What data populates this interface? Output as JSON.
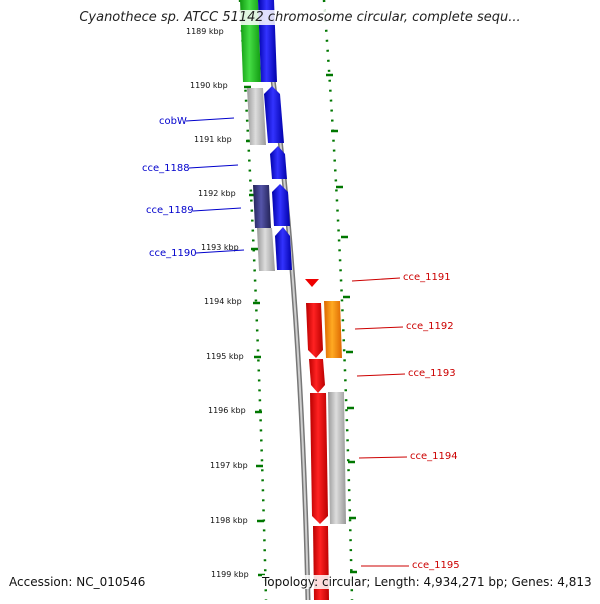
{
  "title": "Cyanothece sp. ATCC 51142 chromosome circular, complete sequ...",
  "footer": {
    "accession": "Accession: NC_010546",
    "topology": "Topology: circular; Length: 4,934,271 bp; Genes: 4,813"
  },
  "kbp_labels": [
    "1189 kbp",
    "1190 kbp",
    "1191 kbp",
    "1192 kbp",
    "1193 kbp",
    "1194 kbp",
    "1195 kbp",
    "1196 kbp",
    "1197 kbp",
    "1198 kbp",
    "1199 kbp"
  ],
  "gene_labels_left": [
    "cobW",
    "cce_1188",
    "cce_1189",
    "cce_1190"
  ],
  "gene_labels_right": [
    "cce_1191",
    "cce_1192",
    "cce_1193",
    "cce_1194",
    "cce_1195"
  ],
  "colors": {
    "gene_blue": "#0000ee",
    "gene_red": "#ee0000",
    "gene_green": "#22bb22",
    "gene_orange": "#ff8800",
    "gene_gray": "#bbbbbb",
    "gene_navy": "#333377",
    "label_left": "#0000cc",
    "label_right": "#cc0000",
    "tick_green": "#007700",
    "backbone": "#888888"
  }
}
